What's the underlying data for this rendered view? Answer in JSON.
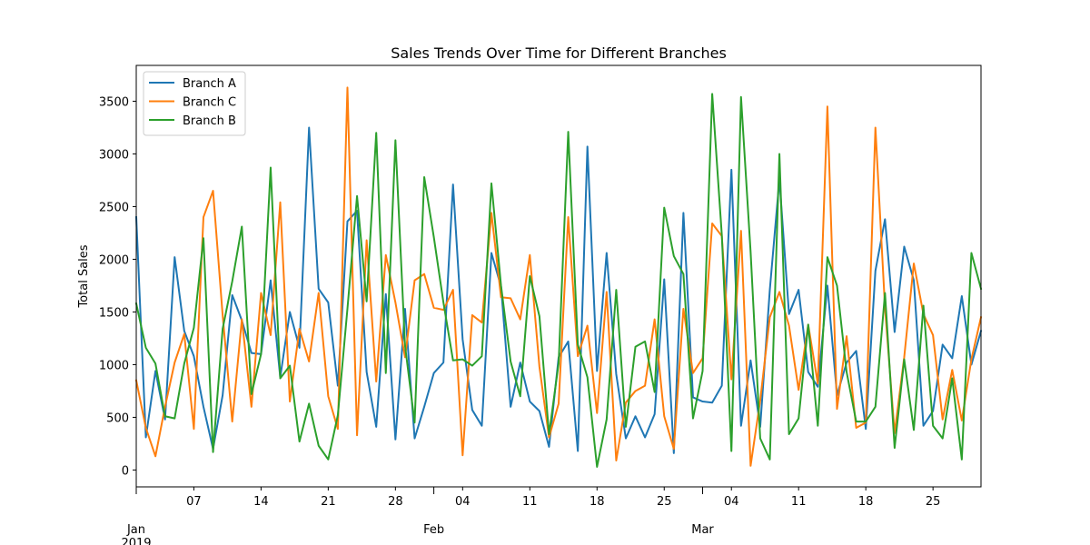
{
  "chart_data": {
    "type": "line",
    "title": "Sales Trends Over Time for Different Branches",
    "xlabel": "",
    "ylabel": "Total Sales",
    "x_start": "2019-01-01",
    "x_end": "2019-03-30",
    "ylim": [
      -160,
      3840
    ],
    "y_ticks": [
      0,
      500,
      1000,
      1500,
      2000,
      2500,
      3000,
      3500
    ],
    "x_minor_ticks": [
      {
        "date": "2019-01-07",
        "label": "07"
      },
      {
        "date": "2019-01-14",
        "label": "14"
      },
      {
        "date": "2019-01-21",
        "label": "21"
      },
      {
        "date": "2019-01-28",
        "label": "28"
      },
      {
        "date": "2019-02-04",
        "label": "04"
      },
      {
        "date": "2019-02-11",
        "label": "11"
      },
      {
        "date": "2019-02-18",
        "label": "18"
      },
      {
        "date": "2019-02-25",
        "label": "25"
      },
      {
        "date": "2019-03-04",
        "label": "04"
      },
      {
        "date": "2019-03-11",
        "label": "11"
      },
      {
        "date": "2019-03-18",
        "label": "18"
      },
      {
        "date": "2019-03-25",
        "label": "25"
      }
    ],
    "x_major_ticks": [
      {
        "date": "2019-01-01",
        "label": "Jan",
        "sublabel": "2019"
      },
      {
        "date": "2019-02-01",
        "label": "Feb",
        "sublabel": ""
      },
      {
        "date": "2019-03-01",
        "label": "Mar",
        "sublabel": ""
      }
    ],
    "grid": false,
    "legend_position": "top-left",
    "series": [
      {
        "name": "Branch A",
        "color": "#1f77b4",
        "values": [
          2400,
          310,
          940,
          480,
          2020,
          1320,
          1080,
          600,
          200,
          710,
          1660,
          1420,
          1110,
          1100,
          1800,
          880,
          1500,
          1160,
          3250,
          1720,
          1590,
          800,
          2360,
          2460,
          930,
          410,
          1670,
          290,
          1530,
          300,
          600,
          920,
          1020,
          2710,
          1240,
          570,
          420,
          2060,
          1740,
          600,
          1020,
          650,
          560,
          220,
          1070,
          1220,
          180,
          3070,
          940,
          2060,
          910,
          300,
          510,
          310,
          530,
          1810,
          160,
          2440,
          690,
          650,
          640,
          800,
          2850,
          420,
          1040,
          410,
          1710,
          2760,
          1480,
          1710,
          930,
          790,
          1750,
          710,
          1020,
          1130,
          390,
          1890,
          2380,
          1310,
          2120,
          1800,
          420,
          560,
          1190,
          1060,
          1650,
          1000,
          1320
        ]
      },
      {
        "name": "Branch C",
        "color": "#ff7f0e",
        "values": [
          850,
          400,
          130,
          600,
          1020,
          1290,
          390,
          2400,
          2650,
          1470,
          460,
          1430,
          600,
          1680,
          1280,
          2540,
          650,
          1340,
          1030,
          1680,
          700,
          390,
          3630,
          330,
          2180,
          840,
          2040,
          1590,
          1070,
          1800,
          1860,
          1540,
          1520,
          1710,
          140,
          1470,
          1400,
          2440,
          1640,
          1630,
          1430,
          2040,
          980,
          310,
          630,
          2400,
          1080,
          1370,
          540,
          1690,
          90,
          640,
          750,
          800,
          1430,
          510,
          200,
          1530,
          920,
          1060,
          2340,
          2220,
          860,
          2270,
          40,
          660,
          1450,
          1690,
          1370,
          760,
          1380,
          820,
          3450,
          580,
          1270,
          400,
          450,
          3250,
          1540,
          350,
          1070,
          1960,
          1480,
          1280,
          480,
          950,
          470,
          1050,
          1450
        ]
      },
      {
        "name": "Branch B",
        "color": "#2ca02c",
        "values": [
          1580,
          1160,
          1010,
          510,
          490,
          1010,
          1350,
          2200,
          170,
          1340,
          1790,
          2310,
          720,
          1100,
          2870,
          870,
          990,
          270,
          630,
          230,
          100,
          520,
          1530,
          2600,
          1600,
          3200,
          920,
          3130,
          1180,
          450,
          2780,
          2210,
          1590,
          1040,
          1050,
          990,
          1080,
          2720,
          1750,
          1030,
          700,
          1840,
          1460,
          340,
          1010,
          3210,
          1190,
          880,
          30,
          480,
          1710,
          410,
          1170,
          1220,
          740,
          2490,
          2030,
          1860,
          490,
          940,
          3570,
          2230,
          180,
          3540,
          2070,
          300,
          100,
          3000,
          340,
          490,
          1380,
          420,
          2020,
          1750,
          930,
          460,
          460,
          600,
          1680,
          210,
          1050,
          380,
          1560,
          420,
          300,
          870,
          100,
          2060,
          1720
        ]
      }
    ]
  }
}
